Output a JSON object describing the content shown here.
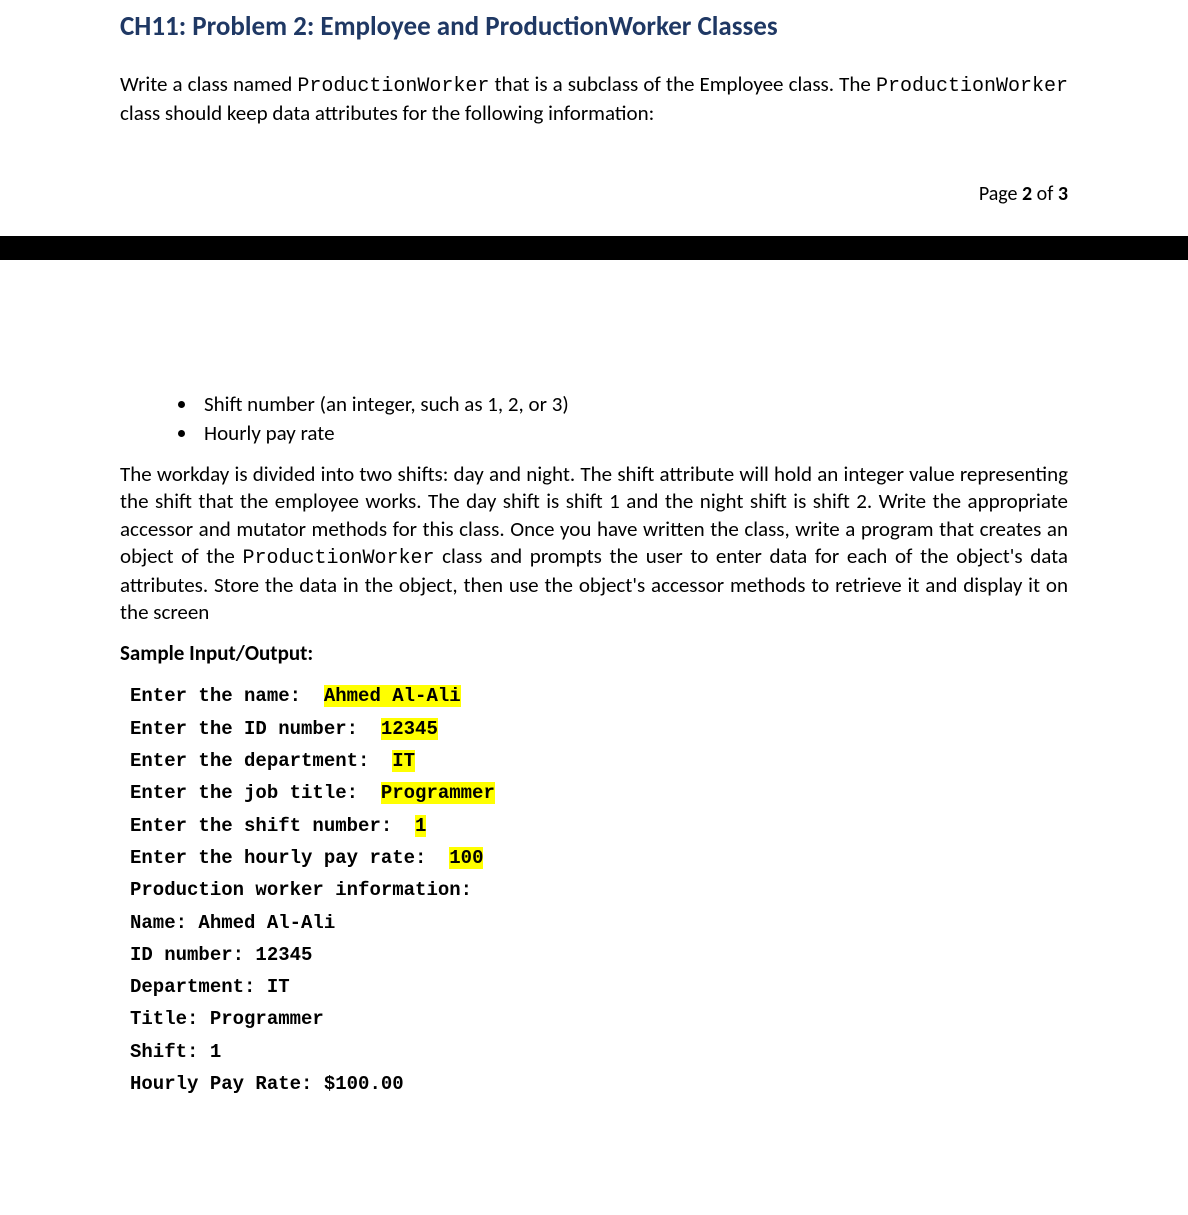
{
  "colors": {
    "heading": "#1f3864",
    "text": "#000000",
    "highlight": "#ffff00",
    "divider": "#000000",
    "background": "#ffffff"
  },
  "top": {
    "heading": "CH11: Problem 2: Employee and ProductionWorker Classes",
    "intro_pre": "Write a class named ",
    "intro_code1": "ProductionWorker",
    "intro_mid": " that is a subclass of the Employee class. The ",
    "intro_code2": "ProductionWorker",
    "intro_post": " class should keep data attributes for the following information:",
    "page_pre": "Page ",
    "page_cur": "2",
    "page_mid": " of ",
    "page_total": "3"
  },
  "bottom": {
    "bullets": [
      "Shift number (an integer, such as 1, 2, or 3)",
      "Hourly pay rate"
    ],
    "para_pre": "The workday is divided into two shifts: day and night. The shift attribute will hold an integer value representing the shift that the employee works. The day shift is shift 1 and the night shift is shift 2. Write the appropriate accessor and mutator methods for this class. Once you have written the class, write a program that creates an object of the ",
    "para_code": "ProductionWorker",
    "para_post": " class and prompts the user to enter data for each of the object's data attributes. Store the data in the object, then use the object's accessor methods to retrieve it and display it on the screen",
    "sample_heading": "Sample Input/Output:",
    "io": [
      {
        "prompt": "Enter the name:  ",
        "hl": "Ahmed Al-Ali"
      },
      {
        "prompt": "Enter the ID number:  ",
        "hl": "12345"
      },
      {
        "prompt": "Enter the department:  ",
        "hl": "IT"
      },
      {
        "prompt": "Enter the job title:  ",
        "hl": "Programmer"
      },
      {
        "prompt": "Enter the shift number:  ",
        "hl": "1"
      },
      {
        "prompt": "Enter the hourly pay rate:  ",
        "hl": "100"
      },
      {
        "prompt": "Production worker information:",
        "hl": ""
      },
      {
        "prompt": "Name: Ahmed Al-Ali",
        "hl": ""
      },
      {
        "prompt": "ID number: 12345",
        "hl": ""
      },
      {
        "prompt": "Department: IT",
        "hl": ""
      },
      {
        "prompt": "Title: Programmer",
        "hl": ""
      },
      {
        "prompt": "Shift: 1",
        "hl": ""
      },
      {
        "prompt": "Hourly Pay Rate: $100.00",
        "hl": ""
      }
    ]
  }
}
